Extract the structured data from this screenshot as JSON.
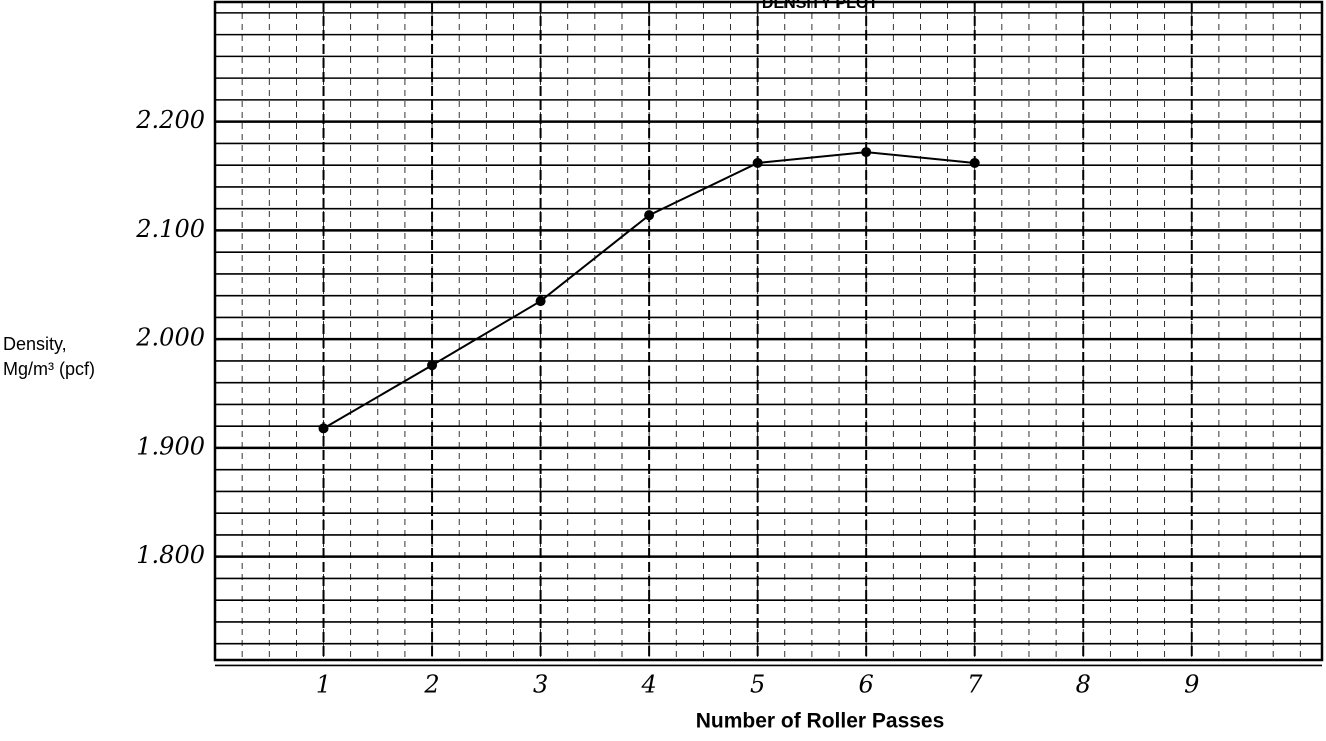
{
  "chart_data": {
    "type": "line",
    "title": "DENSITY PLOT",
    "xlabel": "Number of Roller Passes",
    "ylabel": [
      "Density,",
      "Mg/m³ (pcf)"
    ],
    "x": [
      1,
      2,
      3,
      4,
      5,
      6,
      7
    ],
    "series": [
      {
        "color": "#000000",
        "values": [
          1.918,
          1.976,
          2.035,
          2.114,
          2.162,
          2.172,
          2.162
        ]
      }
    ],
    "xlim": [
      0,
      10.2
    ],
    "xticks": [
      1,
      2,
      3,
      4,
      5,
      6,
      7,
      8,
      9
    ],
    "ylim": [
      1.705,
      2.31
    ],
    "yticks": [
      {
        "value": 1.8,
        "label": "1.800"
      },
      {
        "value": 1.9,
        "label": "1.900"
      },
      {
        "value": 2.0,
        "label": "2.000"
      },
      {
        "value": 2.1,
        "label": "2.100"
      },
      {
        "value": 2.2,
        "label": "2.200"
      }
    ],
    "grid": true
  }
}
